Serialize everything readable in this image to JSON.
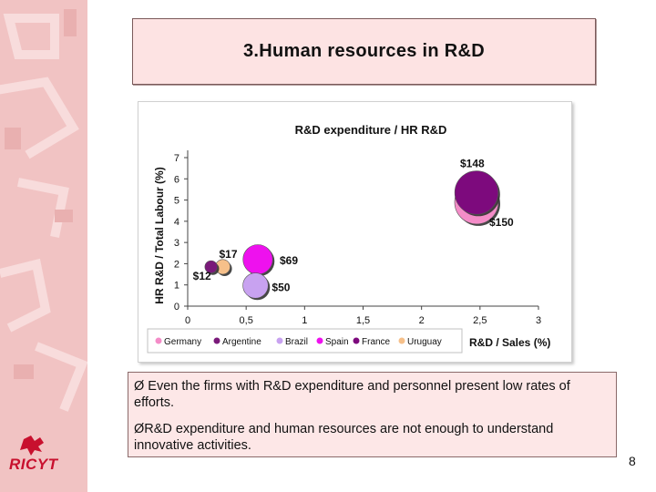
{
  "slide": {
    "title": "3.Human resources in R&D",
    "bullets": [
      "Ø Even the firms with R&D expenditure and personnel present low rates of efforts.",
      "ØR&D expenditure and human resources are not enough to understand innovative activities."
    ],
    "page_number": "8",
    "logo_text": "RICYT"
  },
  "chart_data": {
    "type": "bubble",
    "title": "R&D expenditure / HR R&D",
    "xlabel": "R&D / Sales (%)",
    "ylabel": "HR R&D / Total Labour (%)",
    "xlim": [
      0,
      3
    ],
    "ylim": [
      0,
      7
    ],
    "x_ticks": [
      "0",
      "0,5",
      "1",
      "1,5",
      "2",
      "2,5",
      "3"
    ],
    "y_ticks": [
      "0",
      "1",
      "2",
      "3",
      "4",
      "5",
      "6",
      "7"
    ],
    "grid": false,
    "legend_position": "bottom",
    "series": [
      {
        "name": "Germany",
        "color": "#f48cc8",
        "x": 2.47,
        "y": 4.9,
        "size": 150,
        "label": "$150"
      },
      {
        "name": "Argentine",
        "color": "#7a1a7a",
        "x": 0.2,
        "y": 1.85,
        "size": 12,
        "label": "$12"
      },
      {
        "name": "Brazil",
        "color": "#c8a2f0",
        "x": 0.58,
        "y": 0.97,
        "size": 50,
        "label": "$50"
      },
      {
        "name": "Spain",
        "color": "#ee11ee",
        "x": 0.6,
        "y": 2.2,
        "size": 69,
        "label": "$69"
      },
      {
        "name": "France",
        "color": "#7d0a7d",
        "x": 2.47,
        "y": 5.35,
        "size": 148,
        "label": "$148"
      },
      {
        "name": "Uruguay",
        "color": "#f6c08a",
        "x": 0.3,
        "y": 1.85,
        "size": 17,
        "label": "$17"
      }
    ],
    "colors": {
      "band": "#f1c3c3",
      "title_box": "#fde3e3",
      "text_box": "#fde7e7",
      "logo": "#c8102e"
    }
  }
}
